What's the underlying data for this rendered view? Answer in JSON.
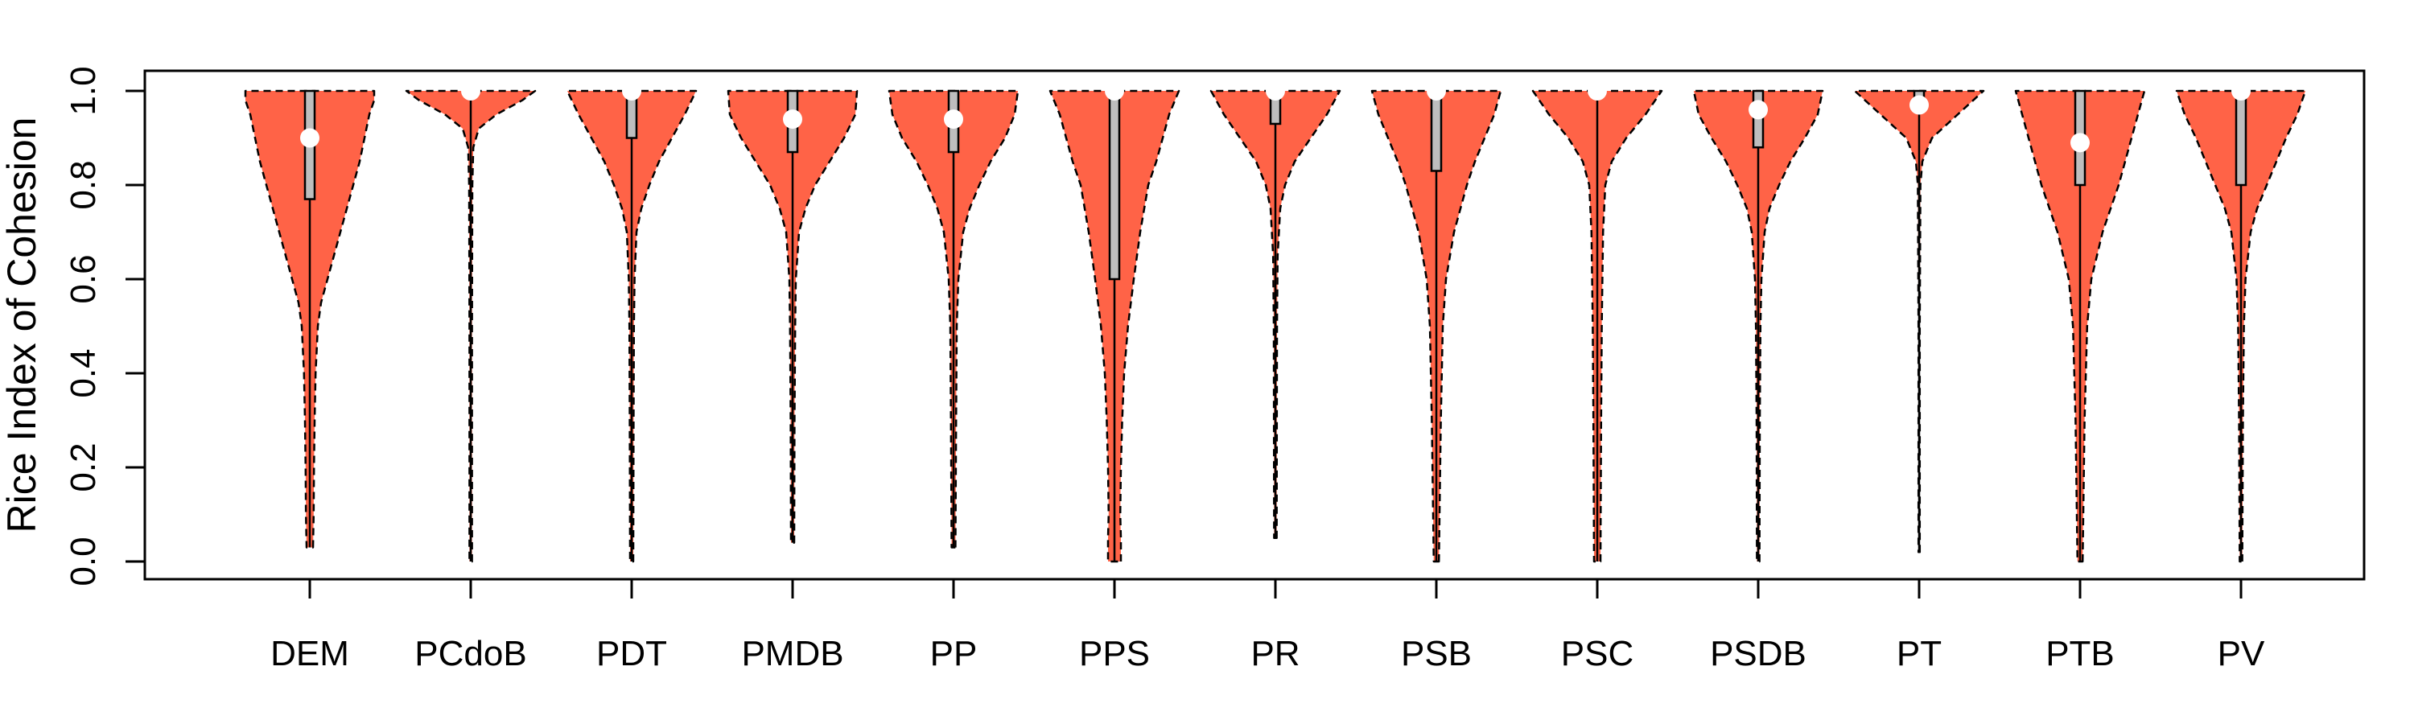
{
  "chart_data": {
    "type": "violin",
    "title": "",
    "xlabel": "",
    "ylabel": "Rice Index of Cohesion",
    "ylim": [
      0.0,
      1.0
    ],
    "yticks": [
      "0.0",
      "0.2",
      "0.4",
      "0.6",
      "0.8",
      "1.0"
    ],
    "grid": false,
    "colors": {
      "fill": "#FF6347",
      "outline": "#000000",
      "box": "#BEBEBE",
      "median": "#FFFFFF"
    },
    "categories": [
      "DEM",
      "PCdoB",
      "PDT",
      "PMDB",
      "PP",
      "PPS",
      "PR",
      "PSB",
      "PSC",
      "PSDB",
      "PT",
      "PTB",
      "PV"
    ],
    "series": [
      {
        "category": "DEM",
        "min": 0.03,
        "q1": 0.77,
        "median": 0.9,
        "q3": 1.0,
        "max": 1.0,
        "density": [
          [
            0.03,
            0.1
          ],
          [
            0.1,
            0.12
          ],
          [
            0.2,
            0.13
          ],
          [
            0.3,
            0.15
          ],
          [
            0.4,
            0.18
          ],
          [
            0.5,
            0.25
          ],
          [
            0.55,
            0.35
          ],
          [
            0.6,
            0.55
          ],
          [
            0.65,
            0.75
          ],
          [
            0.7,
            0.95
          ],
          [
            0.75,
            1.15
          ],
          [
            0.8,
            1.35
          ],
          [
            0.85,
            1.55
          ],
          [
            0.9,
            1.7
          ],
          [
            0.95,
            1.85
          ],
          [
            0.98,
            2.0
          ],
          [
            1.0,
            2.0
          ]
        ]
      },
      {
        "category": "PCdoB",
        "min": 0.0,
        "q1": 0.99,
        "median": 1.0,
        "q3": 1.0,
        "max": 1.0,
        "density": [
          [
            0.0,
            0.04
          ],
          [
            0.5,
            0.04
          ],
          [
            0.8,
            0.05
          ],
          [
            0.88,
            0.08
          ],
          [
            0.92,
            0.25
          ],
          [
            0.95,
            0.8
          ],
          [
            0.98,
            1.6
          ],
          [
            1.0,
            2.0
          ]
        ]
      },
      {
        "category": "PDT",
        "min": 0.0,
        "q1": 0.9,
        "median": 1.0,
        "q3": 1.0,
        "max": 1.0,
        "density": [
          [
            0.0,
            0.05
          ],
          [
            0.3,
            0.06
          ],
          [
            0.5,
            0.07
          ],
          [
            0.6,
            0.09
          ],
          [
            0.7,
            0.15
          ],
          [
            0.75,
            0.3
          ],
          [
            0.8,
            0.55
          ],
          [
            0.85,
            0.85
          ],
          [
            0.9,
            1.25
          ],
          [
            0.95,
            1.65
          ],
          [
            1.0,
            2.0
          ]
        ]
      },
      {
        "category": "PMDB",
        "min": 0.04,
        "q1": 0.87,
        "median": 0.94,
        "q3": 1.0,
        "max": 1.0,
        "density": [
          [
            0.04,
            0.05
          ],
          [
            0.3,
            0.06
          ],
          [
            0.5,
            0.08
          ],
          [
            0.6,
            0.1
          ],
          [
            0.7,
            0.2
          ],
          [
            0.75,
            0.4
          ],
          [
            0.8,
            0.7
          ],
          [
            0.85,
            1.15
          ],
          [
            0.9,
            1.6
          ],
          [
            0.95,
            1.95
          ],
          [
            1.0,
            2.0
          ]
        ]
      },
      {
        "category": "PP",
        "min": 0.03,
        "q1": 0.87,
        "median": 0.94,
        "q3": 1.0,
        "max": 1.0,
        "density": [
          [
            0.03,
            0.06
          ],
          [
            0.3,
            0.08
          ],
          [
            0.5,
            0.1
          ],
          [
            0.6,
            0.15
          ],
          [
            0.7,
            0.3
          ],
          [
            0.75,
            0.5
          ],
          [
            0.8,
            0.8
          ],
          [
            0.85,
            1.15
          ],
          [
            0.9,
            1.6
          ],
          [
            0.95,
            1.9
          ],
          [
            1.0,
            2.0
          ]
        ]
      },
      {
        "category": "PPS",
        "min": 0.0,
        "q1": 0.6,
        "median": 1.0,
        "q3": 1.0,
        "max": 1.0,
        "density": [
          [
            0.0,
            0.2
          ],
          [
            0.05,
            0.2
          ],
          [
            0.1,
            0.18
          ],
          [
            0.2,
            0.2
          ],
          [
            0.3,
            0.24
          ],
          [
            0.4,
            0.3
          ],
          [
            0.5,
            0.42
          ],
          [
            0.6,
            0.6
          ],
          [
            0.7,
            0.8
          ],
          [
            0.8,
            1.05
          ],
          [
            0.85,
            1.3
          ],
          [
            0.9,
            1.5
          ],
          [
            0.95,
            1.7
          ],
          [
            1.0,
            2.0
          ]
        ]
      },
      {
        "category": "PR",
        "min": 0.05,
        "q1": 0.93,
        "median": 1.0,
        "q3": 1.0,
        "max": 1.0,
        "density": [
          [
            0.05,
            0.04
          ],
          [
            0.5,
            0.05
          ],
          [
            0.65,
            0.07
          ],
          [
            0.75,
            0.15
          ],
          [
            0.8,
            0.3
          ],
          [
            0.85,
            0.6
          ],
          [
            0.9,
            1.1
          ],
          [
            0.95,
            1.6
          ],
          [
            1.0,
            2.0
          ]
        ]
      },
      {
        "category": "PSB",
        "min": 0.0,
        "q1": 0.83,
        "median": 1.0,
        "q3": 1.0,
        "max": 1.0,
        "density": [
          [
            0.0,
            0.08
          ],
          [
            0.1,
            0.1
          ],
          [
            0.3,
            0.14
          ],
          [
            0.5,
            0.2
          ],
          [
            0.6,
            0.3
          ],
          [
            0.7,
            0.55
          ],
          [
            0.8,
            0.95
          ],
          [
            0.85,
            1.2
          ],
          [
            0.9,
            1.5
          ],
          [
            0.95,
            1.8
          ],
          [
            1.0,
            2.0
          ]
        ]
      },
      {
        "category": "PSC",
        "min": 0.0,
        "q1": 0.99,
        "median": 1.0,
        "q3": 1.0,
        "max": 1.0,
        "density": [
          [
            0.0,
            0.1
          ],
          [
            0.3,
            0.12
          ],
          [
            0.5,
            0.14
          ],
          [
            0.7,
            0.18
          ],
          [
            0.8,
            0.25
          ],
          [
            0.85,
            0.45
          ],
          [
            0.9,
            0.9
          ],
          [
            0.95,
            1.5
          ],
          [
            1.0,
            2.0
          ]
        ]
      },
      {
        "category": "PSDB",
        "min": 0.0,
        "q1": 0.88,
        "median": 0.96,
        "q3": 1.0,
        "max": 1.0,
        "density": [
          [
            0.0,
            0.04
          ],
          [
            0.3,
            0.05
          ],
          [
            0.5,
            0.07
          ],
          [
            0.6,
            0.1
          ],
          [
            0.7,
            0.2
          ],
          [
            0.75,
            0.35
          ],
          [
            0.8,
            0.65
          ],
          [
            0.85,
            1.0
          ],
          [
            0.9,
            1.45
          ],
          [
            0.95,
            1.85
          ],
          [
            1.0,
            2.0
          ]
        ]
      },
      {
        "category": "PT",
        "min": 0.02,
        "q1": 0.96,
        "median": 0.97,
        "q3": 1.0,
        "max": 1.0,
        "density": [
          [
            0.02,
            0.02
          ],
          [
            0.5,
            0.02
          ],
          [
            0.8,
            0.04
          ],
          [
            0.85,
            0.1
          ],
          [
            0.9,
            0.4
          ],
          [
            0.95,
            1.2
          ],
          [
            1.0,
            2.0
          ]
        ]
      },
      {
        "category": "PTB",
        "min": 0.0,
        "q1": 0.8,
        "median": 0.89,
        "q3": 1.0,
        "max": 1.0,
        "density": [
          [
            0.0,
            0.08
          ],
          [
            0.1,
            0.1
          ],
          [
            0.3,
            0.14
          ],
          [
            0.5,
            0.22
          ],
          [
            0.6,
            0.35
          ],
          [
            0.7,
            0.7
          ],
          [
            0.75,
            0.95
          ],
          [
            0.8,
            1.2
          ],
          [
            0.85,
            1.4
          ],
          [
            0.9,
            1.6
          ],
          [
            0.95,
            1.8
          ],
          [
            1.0,
            2.0
          ]
        ]
      },
      {
        "category": "PV",
        "min": 0.0,
        "q1": 0.8,
        "median": 1.0,
        "q3": 1.0,
        "max": 1.0,
        "density": [
          [
            0.0,
            0.04
          ],
          [
            0.3,
            0.06
          ],
          [
            0.5,
            0.09
          ],
          [
            0.6,
            0.14
          ],
          [
            0.7,
            0.3
          ],
          [
            0.75,
            0.5
          ],
          [
            0.8,
            0.8
          ],
          [
            0.85,
            1.1
          ],
          [
            0.9,
            1.4
          ],
          [
            0.95,
            1.75
          ],
          [
            1.0,
            2.0
          ]
        ]
      }
    ]
  }
}
